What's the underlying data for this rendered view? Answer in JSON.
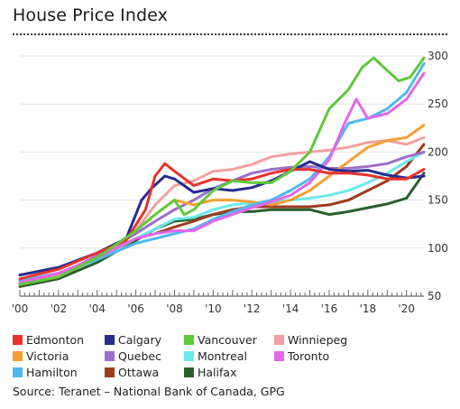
{
  "chart_data": {
    "type": "line",
    "title": "House Price Index",
    "source": "Source: Teranet – National Bank of Canada, GPG",
    "ylim": [
      50,
      300
    ],
    "yticks": [
      "50",
      "100",
      "150",
      "200",
      "250",
      "300"
    ],
    "xticks": [
      "'00",
      "'02",
      "'04",
      "'06",
      "'08",
      "'10",
      "'12",
      "'14",
      "'16",
      "'18",
      "'20"
    ],
    "xlim": [
      2000,
      2020.9
    ],
    "grid": true,
    "legend_position": "bottom",
    "series": [
      {
        "name": "Edmonton",
        "color": "#e8322c",
        "points": [
          [
            2000,
            68
          ],
          [
            2002,
            78
          ],
          [
            2004,
            95
          ],
          [
            2005.5,
            108
          ],
          [
            2006.5,
            140
          ],
          [
            2007,
            175
          ],
          [
            2007.5,
            188
          ],
          [
            2008,
            180
          ],
          [
            2009,
            165
          ],
          [
            2010,
            172
          ],
          [
            2011,
            170
          ],
          [
            2012,
            172
          ],
          [
            2013,
            178
          ],
          [
            2014,
            182
          ],
          [
            2015,
            182
          ],
          [
            2016,
            178
          ],
          [
            2017,
            178
          ],
          [
            2018,
            176
          ],
          [
            2019,
            172
          ],
          [
            2020,
            172
          ],
          [
            2020.9,
            182
          ]
        ]
      },
      {
        "name": "Calgary",
        "color": "#262b8f",
        "points": [
          [
            2000,
            72
          ],
          [
            2002,
            80
          ],
          [
            2004,
            95
          ],
          [
            2005.5,
            110
          ],
          [
            2006.3,
            150
          ],
          [
            2006.8,
            162
          ],
          [
            2007.5,
            175
          ],
          [
            2008,
            172
          ],
          [
            2009,
            158
          ],
          [
            2010,
            162
          ],
          [
            2011,
            160
          ],
          [
            2012,
            163
          ],
          [
            2013,
            170
          ],
          [
            2014,
            180
          ],
          [
            2015,
            190
          ],
          [
            2016,
            182
          ],
          [
            2017,
            180
          ],
          [
            2018,
            181
          ],
          [
            2019,
            176
          ],
          [
            2020,
            173
          ],
          [
            2020.9,
            175
          ]
        ]
      },
      {
        "name": "Vancouver",
        "color": "#5fc83c",
        "points": [
          [
            2000,
            62
          ],
          [
            2002,
            70
          ],
          [
            2004,
            90
          ],
          [
            2006,
            118
          ],
          [
            2007,
            135
          ],
          [
            2008,
            150
          ],
          [
            2008.5,
            135
          ],
          [
            2009,
            140
          ],
          [
            2010,
            160
          ],
          [
            2011,
            170
          ],
          [
            2012,
            168
          ],
          [
            2013,
            168
          ],
          [
            2014,
            180
          ],
          [
            2015,
            200
          ],
          [
            2016,
            245
          ],
          [
            2017,
            265
          ],
          [
            2017.7,
            288
          ],
          [
            2018.3,
            298
          ],
          [
            2019,
            285
          ],
          [
            2019.6,
            274
          ],
          [
            2020.2,
            278
          ],
          [
            2020.9,
            298
          ]
        ]
      },
      {
        "name": "Winniepeg",
        "color": "#f2a0a0",
        "points": [
          [
            2000,
            63
          ],
          [
            2002,
            72
          ],
          [
            2004,
            90
          ],
          [
            2006,
            118
          ],
          [
            2007,
            145
          ],
          [
            2008,
            165
          ],
          [
            2009,
            170
          ],
          [
            2010,
            180
          ],
          [
            2011,
            182
          ],
          [
            2012,
            187
          ],
          [
            2013,
            195
          ],
          [
            2014,
            198
          ],
          [
            2015,
            200
          ],
          [
            2016,
            202
          ],
          [
            2017,
            205
          ],
          [
            2018,
            210
          ],
          [
            2019,
            212
          ],
          [
            2020,
            208
          ],
          [
            2020.9,
            215
          ]
        ]
      },
      {
        "name": "Victoria",
        "color": "#f5a033",
        "points": [
          [
            2000,
            62
          ],
          [
            2002,
            70
          ],
          [
            2004,
            90
          ],
          [
            2006,
            118
          ],
          [
            2007,
            135
          ],
          [
            2008,
            150
          ],
          [
            2009,
            145
          ],
          [
            2010,
            150
          ],
          [
            2011,
            150
          ],
          [
            2012,
            148
          ],
          [
            2013,
            145
          ],
          [
            2014,
            150
          ],
          [
            2015,
            160
          ],
          [
            2016,
            175
          ],
          [
            2017,
            190
          ],
          [
            2018,
            205
          ],
          [
            2019,
            212
          ],
          [
            2020,
            215
          ],
          [
            2020.9,
            228
          ]
        ]
      },
      {
        "name": "Quebec",
        "color": "#9b6fc9",
        "points": [
          [
            2000,
            63
          ],
          [
            2002,
            72
          ],
          [
            2004,
            92
          ],
          [
            2006,
            115
          ],
          [
            2007,
            128
          ],
          [
            2008,
            140
          ],
          [
            2009,
            150
          ],
          [
            2010,
            162
          ],
          [
            2011,
            170
          ],
          [
            2012,
            178
          ],
          [
            2013,
            182
          ],
          [
            2014,
            184
          ],
          [
            2015,
            185
          ],
          [
            2016,
            183
          ],
          [
            2017,
            183
          ],
          [
            2018,
            185
          ],
          [
            2019,
            188
          ],
          [
            2020,
            195
          ],
          [
            2020.9,
            200
          ]
        ]
      },
      {
        "name": "Montreal",
        "color": "#6be9ec",
        "points": [
          [
            2000,
            62
          ],
          [
            2002,
            72
          ],
          [
            2004,
            88
          ],
          [
            2006,
            110
          ],
          [
            2007,
            120
          ],
          [
            2008,
            130
          ],
          [
            2009,
            132
          ],
          [
            2010,
            140
          ],
          [
            2011,
            145
          ],
          [
            2012,
            147
          ],
          [
            2013,
            148
          ],
          [
            2014,
            150
          ],
          [
            2015,
            152
          ],
          [
            2016,
            155
          ],
          [
            2017,
            160
          ],
          [
            2018,
            168
          ],
          [
            2019,
            178
          ],
          [
            2020,
            190
          ],
          [
            2020.9,
            200
          ]
        ]
      },
      {
        "name": "Toronto",
        "color": "#e466e9",
        "points": [
          [
            2000,
            64
          ],
          [
            2002,
            74
          ],
          [
            2004,
            90
          ],
          [
            2006,
            110
          ],
          [
            2007,
            115
          ],
          [
            2008,
            118
          ],
          [
            2009,
            118
          ],
          [
            2010,
            128
          ],
          [
            2011,
            135
          ],
          [
            2012,
            142
          ],
          [
            2013,
            148
          ],
          [
            2014,
            155
          ],
          [
            2015,
            168
          ],
          [
            2016,
            192
          ],
          [
            2016.8,
            230
          ],
          [
            2017.4,
            255
          ],
          [
            2018,
            235
          ],
          [
            2019,
            240
          ],
          [
            2020,
            255
          ],
          [
            2020.9,
            282
          ]
        ]
      },
      {
        "name": "Hamilton",
        "color": "#4fb8ed",
        "points": [
          [
            2000,
            66
          ],
          [
            2002,
            74
          ],
          [
            2004,
            88
          ],
          [
            2006,
            105
          ],
          [
            2007,
            110
          ],
          [
            2008,
            115
          ],
          [
            2009,
            120
          ],
          [
            2010,
            130
          ],
          [
            2011,
            138
          ],
          [
            2012,
            145
          ],
          [
            2013,
            150
          ],
          [
            2014,
            160
          ],
          [
            2015,
            172
          ],
          [
            2016,
            195
          ],
          [
            2017,
            230
          ],
          [
            2018,
            235
          ],
          [
            2019,
            245
          ],
          [
            2020,
            262
          ],
          [
            2020.9,
            292
          ]
        ]
      },
      {
        "name": "Ottawa",
        "color": "#9e3a1f",
        "points": [
          [
            2000,
            62
          ],
          [
            2002,
            72
          ],
          [
            2004,
            90
          ],
          [
            2006,
            110
          ],
          [
            2007,
            115
          ],
          [
            2008,
            122
          ],
          [
            2009,
            128
          ],
          [
            2010,
            135
          ],
          [
            2011,
            140
          ],
          [
            2012,
            143
          ],
          [
            2013,
            143
          ],
          [
            2014,
            143
          ],
          [
            2015,
            143
          ],
          [
            2016,
            145
          ],
          [
            2017,
            150
          ],
          [
            2018,
            160
          ],
          [
            2019,
            170
          ],
          [
            2020,
            185
          ],
          [
            2020.9,
            208
          ]
        ]
      },
      {
        "name": "Halifax",
        "color": "#2a5f2a",
        "points": [
          [
            2000,
            60
          ],
          [
            2002,
            68
          ],
          [
            2004,
            85
          ],
          [
            2006,
            108
          ],
          [
            2007,
            120
          ],
          [
            2008,
            128
          ],
          [
            2009,
            130
          ],
          [
            2010,
            135
          ],
          [
            2011,
            138
          ],
          [
            2012,
            138
          ],
          [
            2013,
            140
          ],
          [
            2014,
            140
          ],
          [
            2015,
            140
          ],
          [
            2016,
            135
          ],
          [
            2017,
            138
          ],
          [
            2018,
            142
          ],
          [
            2019,
            146
          ],
          [
            2020,
            152
          ],
          [
            2020.9,
            178
          ]
        ]
      }
    ]
  }
}
